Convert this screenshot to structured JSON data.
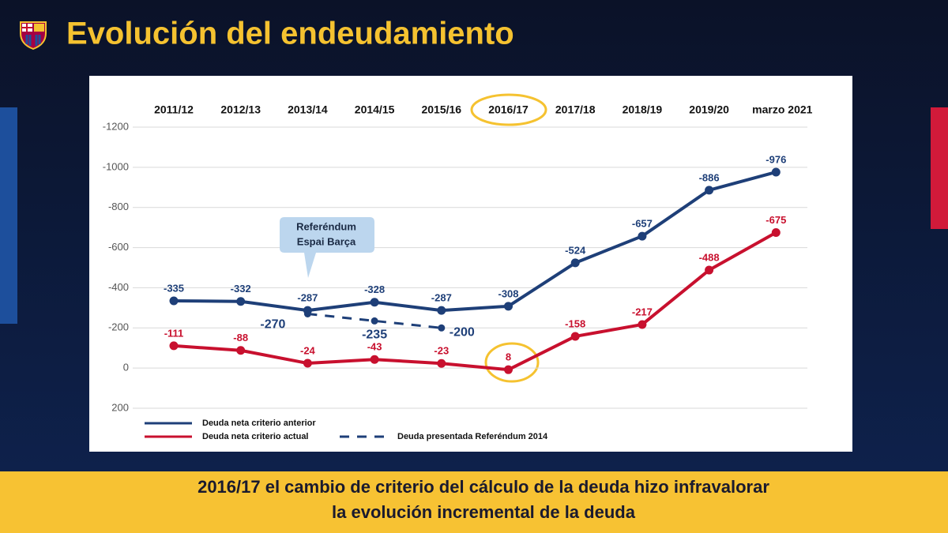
{
  "title": "Evolución del endeudamiento",
  "chart_data": {
    "type": "line",
    "categories": [
      "2011/12",
      "2012/13",
      "2013/14",
      "2014/15",
      "2015/16",
      "2016/17",
      "2017/18",
      "2018/19",
      "2019/20",
      "marzo 2021"
    ],
    "series": [
      {
        "name": "Deuda neta criterio anterior",
        "color": "#1e3f78",
        "style": "solid",
        "values": [
          -335,
          -332,
          -287,
          -328,
          -287,
          -308,
          -524,
          -657,
          -886,
          -976
        ]
      },
      {
        "name": "Deuda neta criterio actual",
        "color": "#c8102e",
        "style": "solid",
        "values": [
          -111,
          -88,
          -24,
          -43,
          -23,
          8,
          -158,
          -217,
          -488,
          -675
        ]
      },
      {
        "name": "Deuda presentada Referéndum 2014",
        "color": "#1e3f78",
        "style": "dashed",
        "values": [
          null,
          null,
          -270,
          -235,
          -200,
          null,
          null,
          null,
          null,
          null
        ]
      }
    ],
    "ylim": [
      200,
      -1200
    ],
    "yticks": [
      -1200,
      -1000,
      -800,
      -600,
      -400,
      -200,
      0,
      200
    ],
    "grid": true,
    "annotation": [
      "Referéndum",
      "Espai Barça"
    ]
  },
  "footer": [
    "2016/17 el cambio de criterio del cálculo de la deuda hizo infravalorar",
    "la evolución incremental de la deuda"
  ]
}
